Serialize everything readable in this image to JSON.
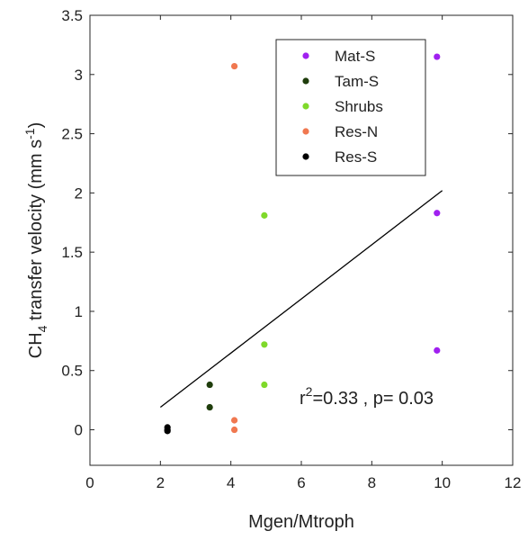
{
  "chart_data": {
    "type": "scatter",
    "title": "",
    "xlabel": "Mgen/Mtroph",
    "ylabel": {
      "prefix": "CH",
      "subscript": "4",
      "middle": " transfer velocity (mm s",
      "superscript": "-1",
      "suffix": ")"
    },
    "xlim": [
      0,
      12
    ],
    "ylim": [
      -0.3,
      3.5
    ],
    "xticks": [
      0,
      2,
      4,
      6,
      8,
      10,
      12
    ],
    "yticks": [
      0,
      0.5,
      1,
      1.5,
      2,
      2.5,
      3,
      3.5
    ],
    "xtick_labels": [
      "0",
      "2",
      "4",
      "6",
      "8",
      "10",
      "12"
    ],
    "ytick_labels": [
      "0",
      "0.5",
      "1",
      "1.5",
      "2",
      "2.5",
      "3",
      "3.5"
    ],
    "grid": false,
    "legend_position": "top-right",
    "series": [
      {
        "name": "Mat-S",
        "color": "#a020f0",
        "points": [
          [
            9.85,
            3.15
          ],
          [
            9.85,
            1.83
          ],
          [
            9.85,
            0.67
          ]
        ]
      },
      {
        "name": "Tam-S",
        "color": "#1f3d0c",
        "points": [
          [
            3.4,
            0.38
          ],
          [
            3.4,
            0.19
          ]
        ]
      },
      {
        "name": "Shrubs",
        "color": "#7fd92a",
        "points": [
          [
            4.95,
            1.81
          ],
          [
            4.95,
            0.72
          ],
          [
            4.95,
            0.38
          ]
        ]
      },
      {
        "name": "Res-N",
        "color": "#f07850",
        "points": [
          [
            4.1,
            3.07
          ],
          [
            4.1,
            0.08
          ],
          [
            4.1,
            0.0
          ]
        ]
      },
      {
        "name": "Res-S",
        "color": "#000000",
        "points": [
          [
            2.2,
            0.02
          ],
          [
            2.2,
            0.0
          ],
          [
            2.2,
            -0.01
          ]
        ]
      }
    ],
    "fit_line": {
      "x": [
        2.0,
        10.0
      ],
      "y": [
        0.19,
        2.02
      ],
      "color": "#000000"
    },
    "annotation": {
      "base": "r",
      "sup": "2",
      "rest": "=0.33 , p= 0.03"
    }
  }
}
